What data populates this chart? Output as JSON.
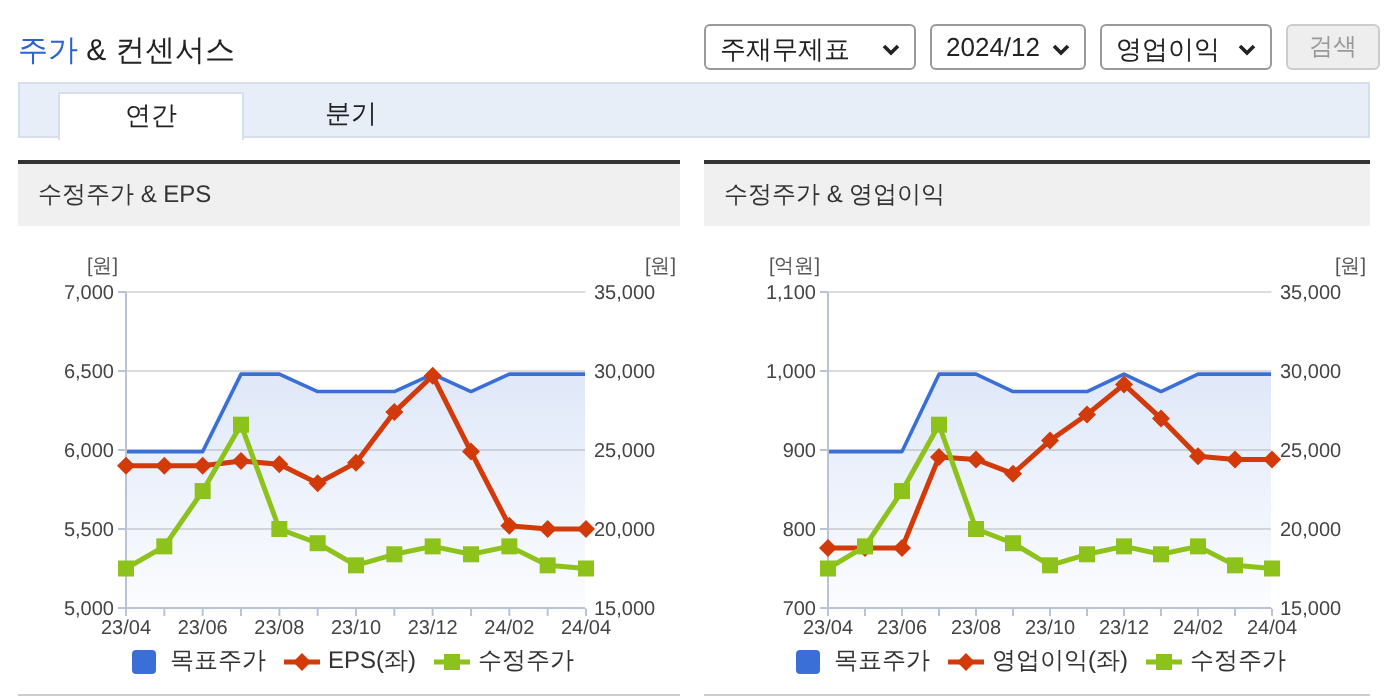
{
  "chart_data": [
    {
      "type": "other",
      "title": "주가 & 컨센서스",
      "annotations": [
        "주재무제표",
        "2024/12",
        "영업이익",
        "검색",
        "연간",
        "분기"
      ]
    },
    {
      "type": "line",
      "title": "수정주가 & EPS",
      "ylabel": "[원]",
      "y2label": "[원]",
      "categories": [
        "23/04",
        null,
        "23/06",
        null,
        "23/08",
        null,
        "23/10",
        null,
        "23/12",
        null,
        "24/02",
        null,
        "24/04"
      ],
      "series": [
        {
          "name": "목표주가",
          "type": "area",
          "axis": "y2",
          "color": "#3a6fd8",
          "marker": "none",
          "values": [
            24900,
            24900,
            24900,
            29800,
            29800,
            28700,
            28700,
            28700,
            29800,
            28700,
            29800,
            29800,
            29800
          ]
        },
        {
          "name": "EPS(좌)",
          "type": "line",
          "axis": "y",
          "color": "#d23a0a",
          "marker": "diamond",
          "values": [
            5900,
            5900,
            5900,
            5930,
            5910,
            5790,
            5920,
            6240,
            6470,
            5990,
            5520,
            5500,
            5500
          ]
        },
        {
          "name": "수정주가",
          "type": "line",
          "axis": "y2",
          "color": "#8cc21a",
          "marker": "square",
          "values": [
            17500,
            18900,
            22400,
            26600,
            20000,
            19100,
            17700,
            18400,
            18900,
            18400,
            18900,
            17700,
            17500
          ]
        }
      ],
      "ylim": [
        5000,
        7000
      ],
      "yticks": [
        {
          "value": 5000,
          "label": "5,000"
        },
        {
          "value": 5500,
          "label": "5,500"
        },
        {
          "value": 6000,
          "label": "6,000"
        },
        {
          "value": 6500,
          "label": "6,500"
        },
        {
          "value": 7000,
          "label": "7,000"
        }
      ],
      "y2lim": [
        15000,
        35000
      ],
      "y2ticks": [
        {
          "value": 15000,
          "label": "15,000"
        },
        {
          "value": 20000,
          "label": "20,000"
        },
        {
          "value": 25000,
          "label": "25,000"
        },
        {
          "value": 30000,
          "label": "30,000"
        },
        {
          "value": 35000,
          "label": "35,000"
        }
      ],
      "grid": "y",
      "legend": "bottom"
    },
    {
      "type": "line",
      "title": "수정주가 & 영업이익",
      "ylabel": "[억원]",
      "y2label": "[원]",
      "categories": [
        "23/04",
        null,
        "23/06",
        null,
        "23/08",
        null,
        "23/10",
        null,
        "23/12",
        null,
        "24/02",
        null,
        "24/04"
      ],
      "series": [
        {
          "name": "목표주가",
          "type": "area",
          "axis": "y2",
          "color": "#3a6fd8",
          "marker": "none",
          "values": [
            24900,
            24900,
            24900,
            29800,
            29800,
            28700,
            28700,
            28700,
            29800,
            28700,
            29800,
            29800,
            29800
          ]
        },
        {
          "name": "영업이익(좌)",
          "type": "line",
          "axis": "y",
          "color": "#d23a0a",
          "marker": "diamond",
          "values": [
            776,
            776,
            776,
            891,
            888,
            870,
            912,
            945,
            983,
            940,
            892,
            888,
            888
          ]
        },
        {
          "name": "수정주가",
          "type": "line",
          "axis": "y2",
          "color": "#8cc21a",
          "marker": "square",
          "values": [
            17500,
            18900,
            22400,
            26600,
            20000,
            19100,
            17700,
            18400,
            18900,
            18400,
            18900,
            17700,
            17500
          ]
        }
      ],
      "ylim": [
        700,
        1100
      ],
      "yticks": [
        {
          "value": 700,
          "label": "700"
        },
        {
          "value": 800,
          "label": "800"
        },
        {
          "value": 900,
          "label": "900"
        },
        {
          "value": 1000,
          "label": "1,000"
        },
        {
          "value": 1100,
          "label": "1,100"
        }
      ],
      "y2lim": [
        15000,
        35000
      ],
      "y2ticks": [
        {
          "value": 15000,
          "label": "15,000"
        },
        {
          "value": 20000,
          "label": "20,000"
        },
        {
          "value": 25000,
          "label": "25,000"
        },
        {
          "value": 30000,
          "label": "30,000"
        },
        {
          "value": 35000,
          "label": "35,000"
        }
      ],
      "grid": "y",
      "legend": "bottom"
    }
  ]
}
